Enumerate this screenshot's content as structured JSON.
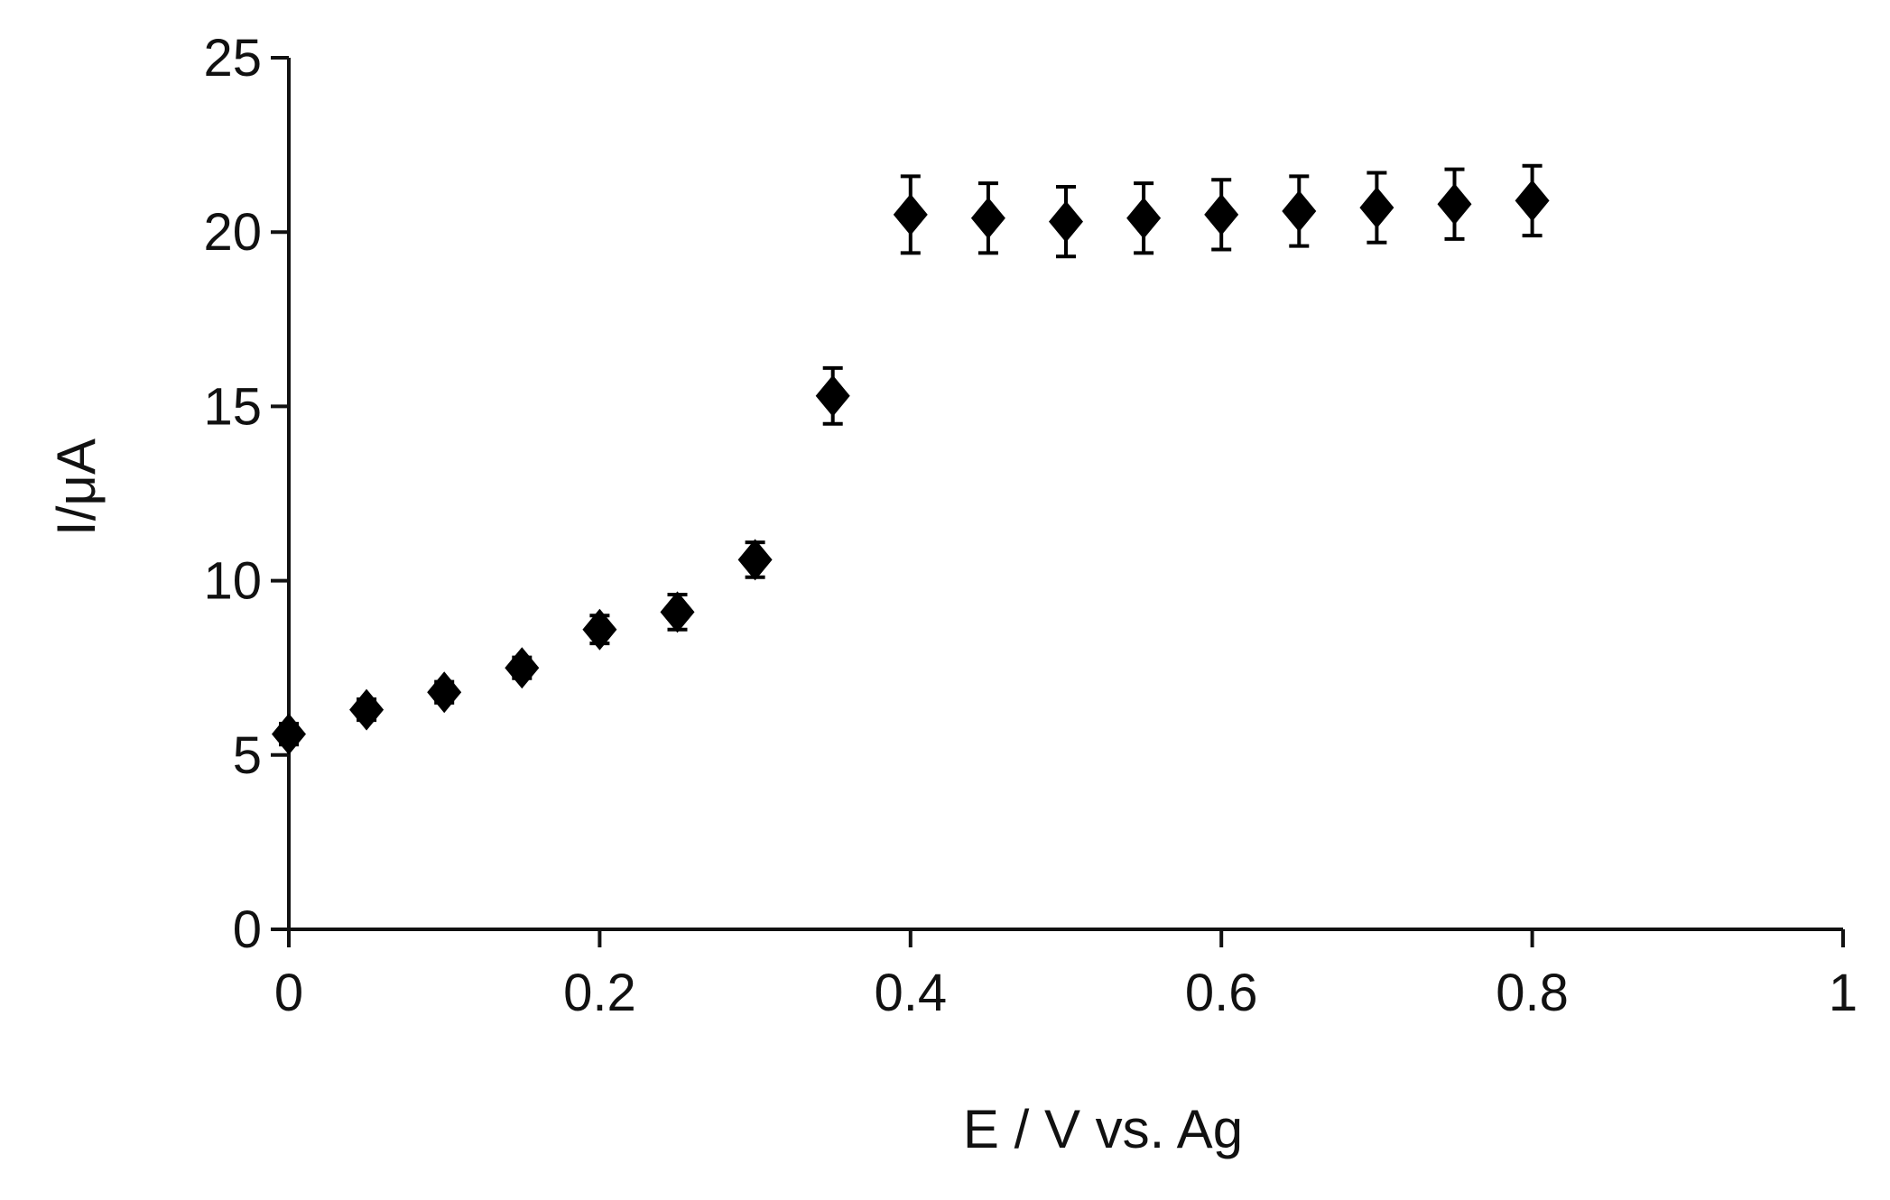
{
  "chart_data": {
    "type": "scatter",
    "xlabel": "E / V vs. Ag",
    "ylabel": "I/μA",
    "xlim": [
      0,
      1
    ],
    "ylim": [
      0,
      25
    ],
    "x_ticks": [
      "0",
      "0.2",
      "0.4",
      "0.6",
      "0.8",
      "1"
    ],
    "y_ticks": [
      "0",
      "5",
      "10",
      "15",
      "20",
      "25"
    ],
    "marker": "diamond",
    "marker_color": "#000000",
    "grid": false,
    "legend": "none",
    "points": [
      {
        "x": 0.0,
        "y": 5.6,
        "err": 0.3
      },
      {
        "x": 0.05,
        "y": 6.3,
        "err": 0.3
      },
      {
        "x": 0.1,
        "y": 6.8,
        "err": 0.3
      },
      {
        "x": 0.15,
        "y": 7.5,
        "err": 0.3
      },
      {
        "x": 0.2,
        "y": 8.6,
        "err": 0.4
      },
      {
        "x": 0.25,
        "y": 9.1,
        "err": 0.5
      },
      {
        "x": 0.3,
        "y": 10.6,
        "err": 0.5
      },
      {
        "x": 0.35,
        "y": 15.3,
        "err": 0.8
      },
      {
        "x": 0.4,
        "y": 20.5,
        "err": 1.1
      },
      {
        "x": 0.45,
        "y": 20.4,
        "err": 1.0
      },
      {
        "x": 0.5,
        "y": 20.3,
        "err": 1.0
      },
      {
        "x": 0.55,
        "y": 20.4,
        "err": 1.0
      },
      {
        "x": 0.6,
        "y": 20.5,
        "err": 1.0
      },
      {
        "x": 0.65,
        "y": 20.6,
        "err": 1.0
      },
      {
        "x": 0.7,
        "y": 20.7,
        "err": 1.0
      },
      {
        "x": 0.75,
        "y": 20.8,
        "err": 1.0
      },
      {
        "x": 0.8,
        "y": 20.9,
        "err": 1.0
      }
    ]
  }
}
